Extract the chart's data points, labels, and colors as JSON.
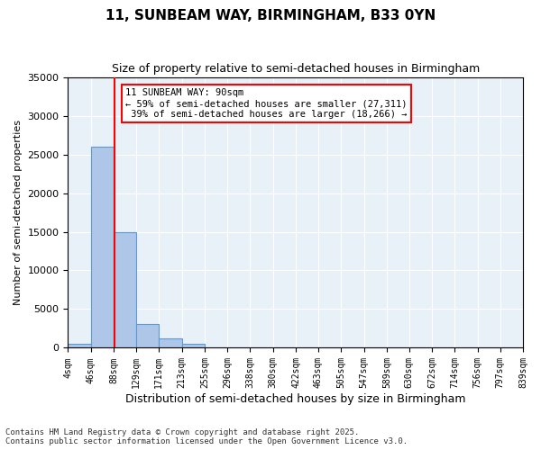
{
  "title": "11, SUNBEAM WAY, BIRMINGHAM, B33 0YN",
  "subtitle": "Size of property relative to semi-detached houses in Birmingham",
  "xlabel": "Distribution of semi-detached houses by size in Birmingham",
  "ylabel": "Number of semi-detached properties",
  "property_size": 90,
  "property_label": "11 SUNBEAM WAY: 90sqm",
  "pct_smaller": 59,
  "pct_larger": 39,
  "n_smaller": 27311,
  "n_larger": 18266,
  "bin_edges": [
    4,
    46,
    88,
    129,
    171,
    213,
    255,
    296,
    338,
    380,
    422,
    463,
    505,
    547,
    589,
    630,
    672,
    714,
    756,
    797,
    839
  ],
  "bin_counts": [
    500,
    26000,
    15000,
    3100,
    1200,
    500,
    50,
    30,
    15,
    8,
    5,
    3,
    2,
    1,
    1,
    1,
    0,
    0,
    0,
    0
  ],
  "bar_color": "#aec6e8",
  "bar_edge_color": "#5b9bd5",
  "redline_color": "red",
  "annotation_box_color": "red",
  "background_color": "#e8f0f8",
  "grid_color": "white",
  "ylim": [
    0,
    35000
  ],
  "yticks": [
    0,
    5000,
    10000,
    15000,
    20000,
    25000,
    30000,
    35000
  ],
  "footer_text": "Contains HM Land Registry data © Crown copyright and database right 2025.\nContains public sector information licensed under the Open Government Licence v3.0."
}
